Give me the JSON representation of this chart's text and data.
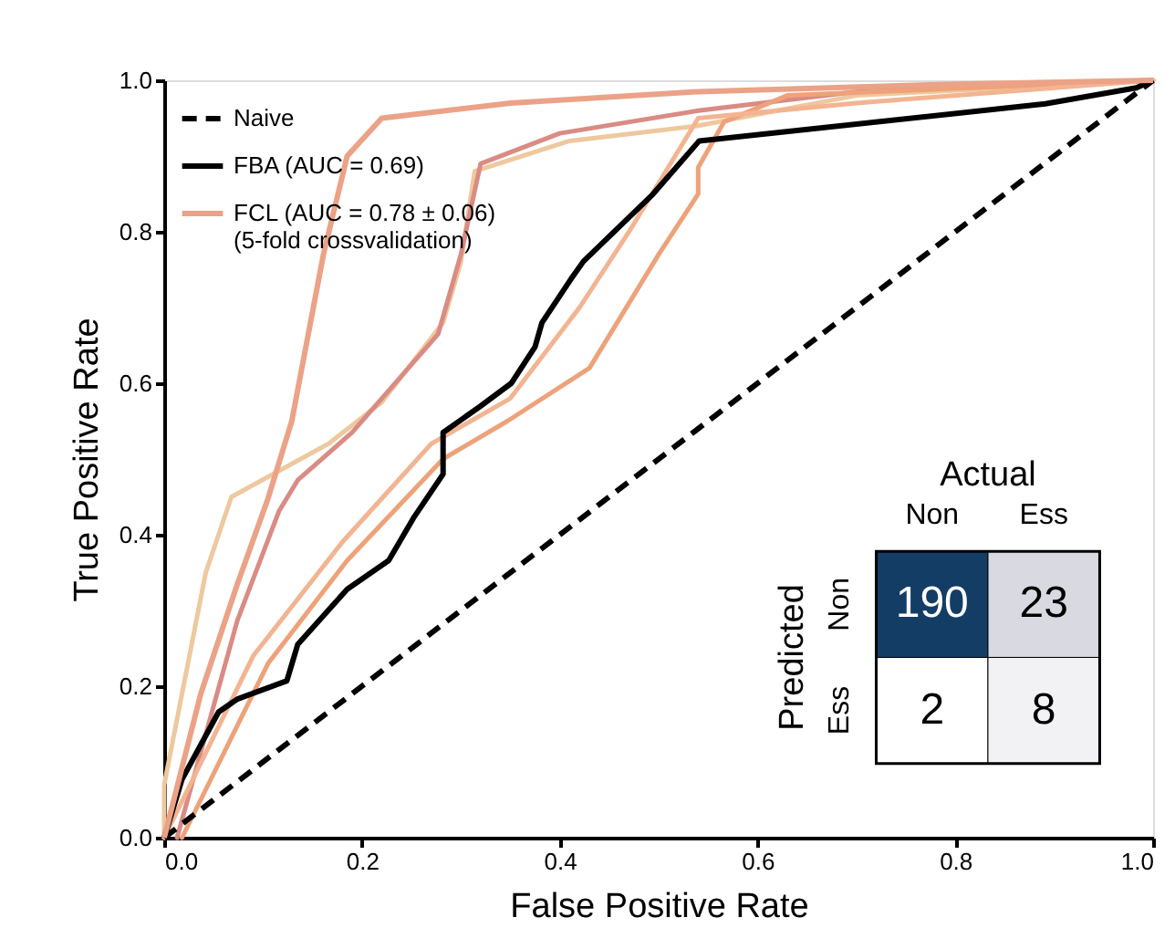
{
  "chart_data": [
    {
      "type": "line",
      "xlabel": "False Positive Rate",
      "ylabel": "True Positive Rate",
      "xlim": [
        0,
        1
      ],
      "ylim": [
        0,
        1
      ],
      "xticks": [
        {
          "value": 0,
          "label": "0.0"
        },
        0.2,
        0.4,
        0.6,
        0.8,
        {
          "value": 1,
          "label": "1.0"
        }
      ],
      "yticks": [
        {
          "value": 0,
          "label": "0.0"
        },
        0.2,
        0.4,
        0.6,
        0.8,
        {
          "value": 1,
          "label": "1.0"
        }
      ],
      "grid": false,
      "legend": "top left",
      "marker": "none",
      "series": [
        {
          "name": "Naive",
          "color": "#000000",
          "line_style": "dashed",
          "x": [
            0,
            1
          ],
          "values": [
            0,
            1
          ]
        },
        {
          "name": "FBA (AUC = 0.69)",
          "color": "#000000",
          "line_style": "solid",
          "x": [
            0,
            0.018,
            0.055,
            0.074,
            0.124,
            0.135,
            0.185,
            0.227,
            0.253,
            0.282,
            0.282,
            0.319,
            0.351,
            0.375,
            0.382,
            0.411,
            0.424,
            0.493,
            0.541,
            0.891,
            0.983,
            1
          ],
          "values": [
            0,
            0.077,
            0.166,
            0.183,
            0.207,
            0.255,
            0.328,
            0.366,
            0.424,
            0.48,
            0.535,
            0.569,
            0.6,
            0.648,
            0.68,
            0.737,
            0.761,
            0.848,
            0.92,
            0.969,
            0.99,
            1
          ]
        },
        {
          "name": "FCL (AUC = 0.78 ± 0.06)\n(5-fold crossvalidation)",
          "color": "#eba287",
          "line_style": "solid",
          "x": [
            0,
            0.037,
            0.074,
            0.105,
            0.129,
            0.161,
            0.185,
            0.22,
            0.35,
            0.54,
            0.8,
            1
          ],
          "values": [
            0,
            0.19,
            0.335,
            0.448,
            0.55,
            0.77,
            0.9,
            0.95,
            0.97,
            0.985,
            0.995,
            1
          ]
        },
        {
          "color": "#eec89e",
          "line_style": "solid",
          "x": [
            0,
            0,
            0.042,
            0.068,
            0.166,
            0.22,
            0.282,
            0.3,
            0.314,
            0.41,
            0.54,
            0.7,
            1
          ],
          "values": [
            0,
            0.07,
            0.35,
            0.45,
            0.52,
            0.575,
            0.68,
            0.76,
            0.88,
            0.92,
            0.94,
            0.98,
            1
          ]
        },
        {
          "color": "#d98b84",
          "line_style": "solid",
          "x": [
            0.013,
            0.074,
            0.116,
            0.135,
            0.19,
            0.277,
            0.3,
            0.32,
            0.4,
            0.54,
            0.7,
            1
          ],
          "values": [
            0,
            0.287,
            0.431,
            0.472,
            0.535,
            0.665,
            0.77,
            0.89,
            0.93,
            0.96,
            0.985,
            1
          ]
        },
        {
          "color": "#eea27a",
          "line_style": "solid",
          "x": [
            0.018,
            0.105,
            0.185,
            0.282,
            0.347,
            0.43,
            0.5,
            0.54,
            0.54,
            0.566,
            0.63,
            1
          ],
          "values": [
            0,
            0.23,
            0.366,
            0.5,
            0.55,
            0.62,
            0.77,
            0.85,
            0.885,
            0.945,
            0.98,
            1
          ]
        },
        {
          "color": "#f3b491",
          "line_style": "solid",
          "x": [
            0,
            0.09,
            0.18,
            0.27,
            0.35,
            0.42,
            0.47,
            0.54,
            0.7,
            1
          ],
          "values": [
            0,
            0.24,
            0.39,
            0.52,
            0.58,
            0.7,
            0.8,
            0.95,
            0.97,
            1
          ]
        }
      ]
    },
    {
      "type": "heatmap",
      "xlabel": "Actual",
      "ylabel": "Predicted",
      "categories": [
        "Non",
        "Ess"
      ],
      "y_categories": [
        "Non",
        "Ess"
      ],
      "cells": [
        [
          190,
          23
        ],
        [
          2,
          8
        ]
      ],
      "data_labels": true,
      "colors": [
        "#143d66",
        "#d9d9e1",
        "#ffffff",
        "#f2f2f5"
      ]
    }
  ]
}
